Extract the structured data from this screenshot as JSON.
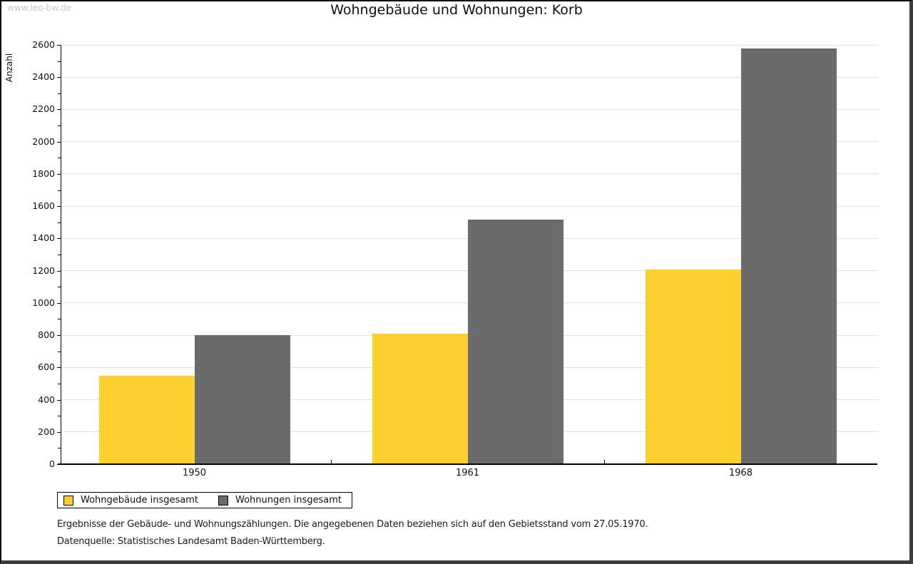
{
  "watermark": "www.leo-bw.de",
  "title": "Wohngebäude und Wohnungen: Korb",
  "chart_data": {
    "type": "bar",
    "title": "Wohngebäude und Wohnungen: Korb",
    "categories": [
      "1950",
      "1961",
      "1968"
    ],
    "series": [
      {
        "name": "Wohngebäude insgesamt",
        "color": "#fcd12f",
        "values": [
          550,
          810,
          1205
        ]
      },
      {
        "name": "Wohnungen insgesamt",
        "color": "#6b6b6b",
        "values": [
          800,
          1515,
          2580
        ]
      }
    ],
    "xlabel": "",
    "ylabel": "Anzahl",
    "ylim": [
      0,
      2600
    ],
    "ytick_step": 200,
    "yminor_step": 100,
    "grid": true,
    "legend_position": "bottom-left"
  },
  "notes": [
    "Ergebnisse der Gebäude- und Wohnungszählungen. Die angegebenen Daten beziehen sich auf den Gebietsstand vom 27.05.1970.",
    "Datenquelle: Statistisches Landesamt Baden-Württemberg."
  ]
}
